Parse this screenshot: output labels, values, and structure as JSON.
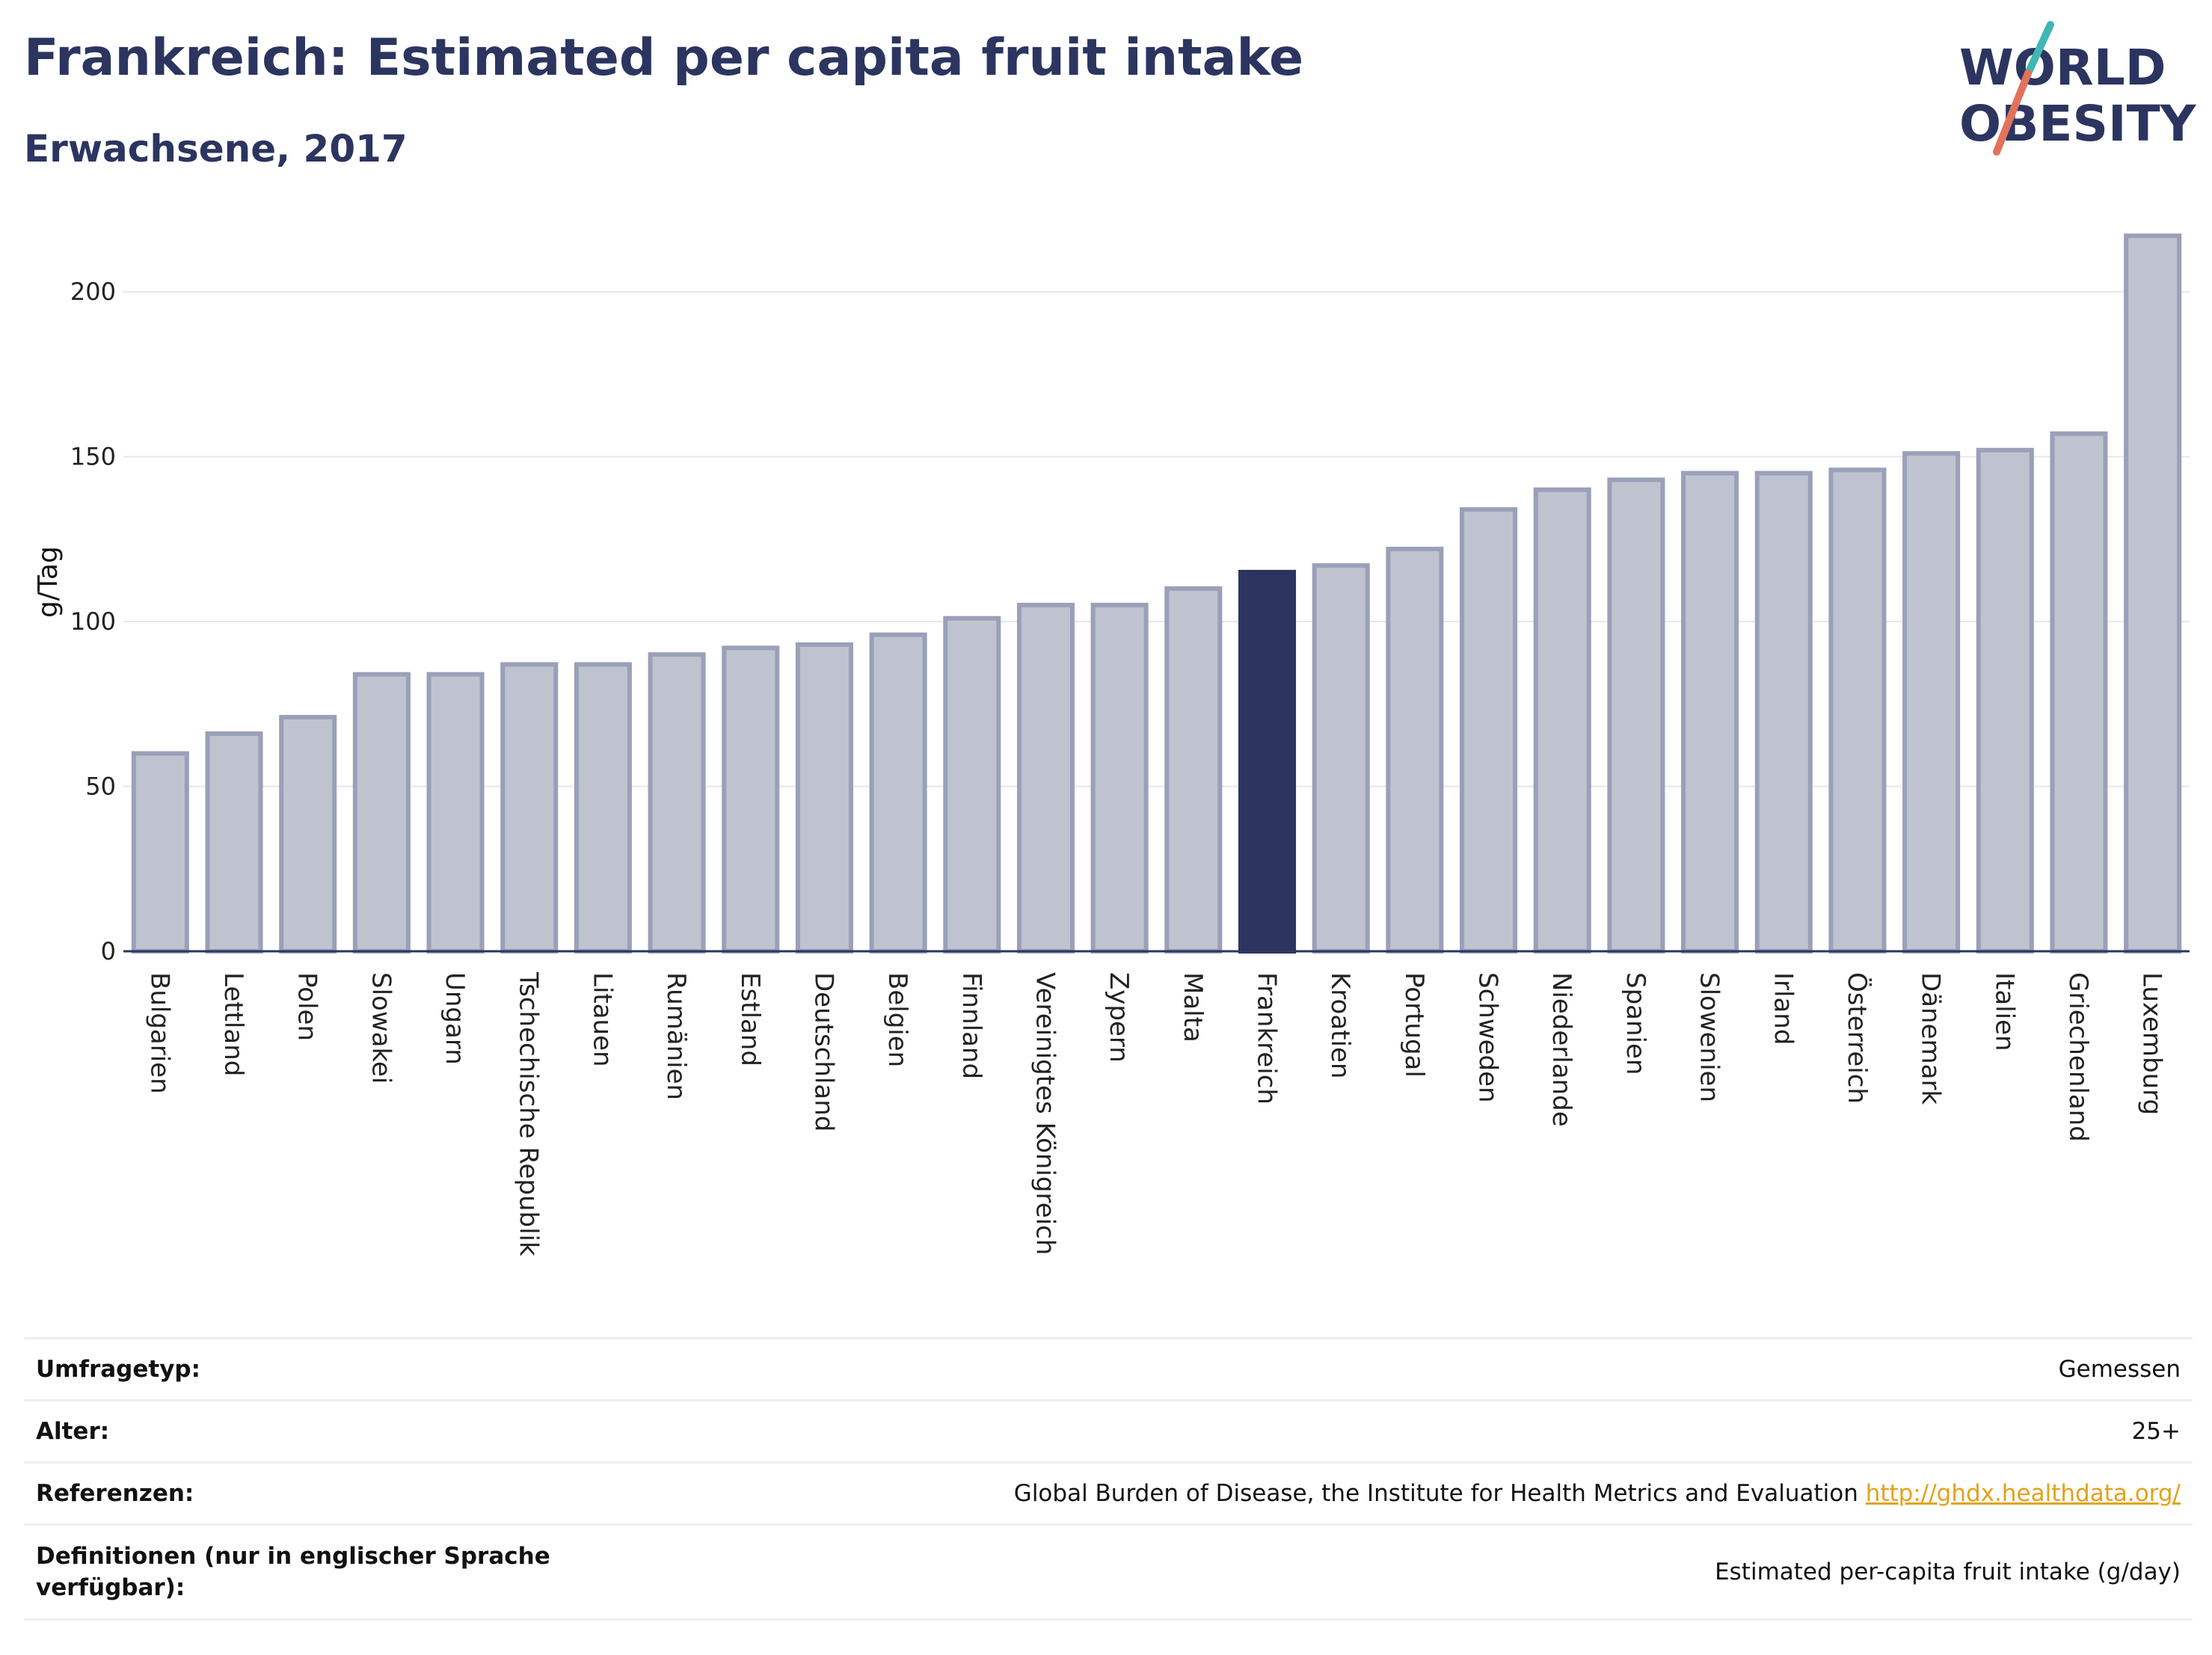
{
  "header": {
    "title": "Frankreich: Estimated per capita fruit intake",
    "subtitle": "Erwachsene, 2017"
  },
  "logo": {
    "line1": "WORLD",
    "line2": "OBESITY",
    "text_color": "#2b3560",
    "slash_colors": [
      "#3fb7b3",
      "#e2725b"
    ]
  },
  "chart_data": {
    "type": "bar",
    "title": "Frankreich: Estimated per capita fruit intake",
    "subtitle": "Erwachsene, 2017",
    "ylabel": "g/Tag",
    "xlabel": "",
    "ylim": [
      0,
      225
    ],
    "yticks": [
      0,
      50,
      100,
      150,
      200
    ],
    "grid": true,
    "highlight": "Frankreich",
    "colors": {
      "bar": "#bfc3d0",
      "bar_border": "#9aa0b8",
      "highlight": "#2b3560"
    },
    "categories": [
      "Bulgarien",
      "Lettland",
      "Polen",
      "Slowakei",
      "Ungarn",
      "Tschechische Republik",
      "Litauen",
      "Rumänien",
      "Estland",
      "Deutschland",
      "Belgien",
      "Finnland",
      "Vereinigtes Königreich",
      "Zypern",
      "Malta",
      "Frankreich",
      "Kroatien",
      "Portugal",
      "Schweden",
      "Niederlande",
      "Spanien",
      "Slowenien",
      "Irland",
      "Österreich",
      "Dänemark",
      "Italien",
      "Griechenland",
      "Luxemburg"
    ],
    "values": [
      60,
      66,
      71,
      84,
      84,
      87,
      87,
      90,
      92,
      93,
      96,
      101,
      105,
      105,
      110,
      115,
      117,
      122,
      134,
      140,
      143,
      145,
      145,
      146,
      151,
      152,
      157,
      217
    ]
  },
  "info_table": {
    "rows": [
      {
        "label": "Umfragetyp:",
        "value": "Gemessen"
      },
      {
        "label": "Alter:",
        "value": "25+"
      },
      {
        "label": "Referenzen:",
        "value": "Global Burden of Disease, the Institute for Health Metrics and Evaluation",
        "link": "http://ghdx.healthdata.org/"
      },
      {
        "label": "Definitionen (nur in englischer Sprache verfügbar):",
        "value": "Estimated per-capita fruit intake (g/day)"
      }
    ]
  }
}
